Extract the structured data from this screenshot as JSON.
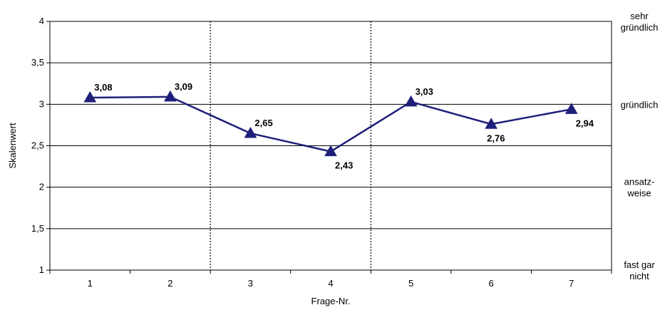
{
  "chart_data": {
    "type": "line",
    "title": "",
    "xlabel": "Frage-Nr.",
    "ylabel": "Skalenwert",
    "categories": [
      "1",
      "2",
      "3",
      "4",
      "5",
      "6",
      "7"
    ],
    "series": [
      {
        "values": [
          3.08,
          3.09,
          2.65,
          2.43,
          3.03,
          2.76,
          2.94
        ]
      }
    ],
    "data_labels": [
      "3,08",
      "3,09",
      "2,65",
      "2,43",
      "3,03",
      "2,76",
      "2,94"
    ],
    "ylim": [
      1,
      4
    ],
    "yticks": [
      1,
      1.5,
      2,
      2.5,
      3,
      3.5,
      4
    ],
    "ytick_labels": [
      "1",
      "1,5",
      "2",
      "2,5",
      "3",
      "3,5",
      "4"
    ],
    "right_axis_labels": [
      {
        "value": 4,
        "lines": [
          "sehr",
          "gründlich"
        ]
      },
      {
        "value": 3,
        "lines": [
          "gründlich"
        ]
      },
      {
        "value": 2,
        "lines": [
          "ansatz-",
          "weise"
        ]
      },
      {
        "value": 1,
        "lines": [
          "fast gar",
          "nicht"
        ]
      }
    ],
    "group_separators_after": [
      2,
      4
    ],
    "grid": true,
    "series_color": "#1f1f7a",
    "marker": "triangle"
  }
}
